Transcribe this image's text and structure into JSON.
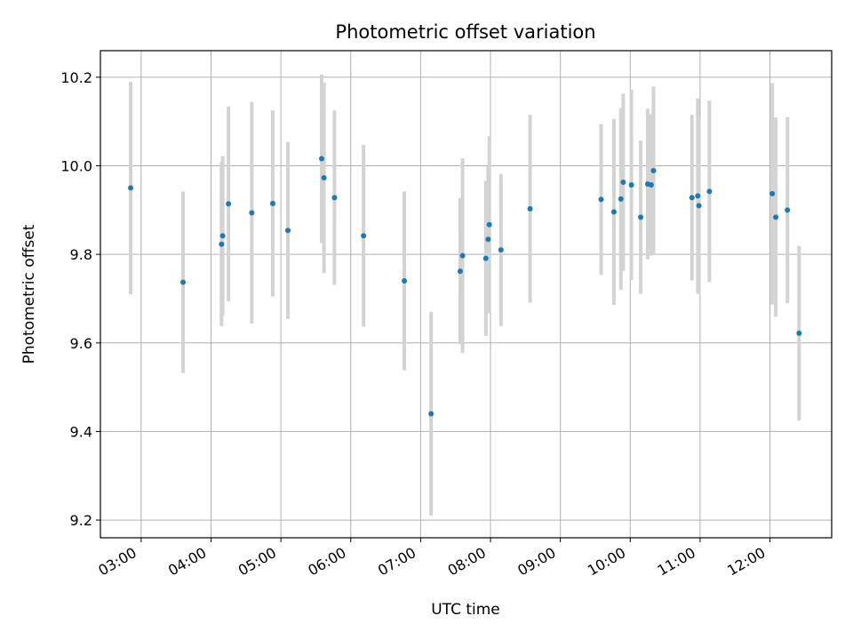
{
  "chart_data": {
    "type": "scatter",
    "title": "Photometric offset variation",
    "xlabel": "UTC time",
    "ylabel": "Photometric offset",
    "x_ticks": [
      "03:00",
      "04:00",
      "05:00",
      "06:00",
      "07:00",
      "08:00",
      "09:00",
      "10:00",
      "11:00",
      "12:00"
    ],
    "y_ticks": [
      "9.2",
      "9.4",
      "9.6",
      "9.8",
      "10.0",
      "10.2"
    ],
    "xlim": [
      "02:25",
      "12:53"
    ],
    "ylim": [
      9.16,
      10.26
    ],
    "grid": true,
    "colors": {
      "point": "#1f77b4",
      "errorbar": "#d3d3d3",
      "grid": "#b0b0b0"
    },
    "points": [
      {
        "x": "02:51",
        "y": 9.95,
        "err": 0.24
      },
      {
        "x": "03:36",
        "y": 9.737,
        "err": 0.205
      },
      {
        "x": "04:09",
        "y": 9.823,
        "err": 0.185
      },
      {
        "x": "04:10",
        "y": 9.842,
        "err": 0.18
      },
      {
        "x": "04:15",
        "y": 9.914,
        "err": 0.22
      },
      {
        "x": "04:35",
        "y": 9.894,
        "err": 0.25
      },
      {
        "x": "04:53",
        "y": 9.915,
        "err": 0.21
      },
      {
        "x": "05:06",
        "y": 9.854,
        "err": 0.2
      },
      {
        "x": "05:35",
        "y": 10.016,
        "err": 0.19
      },
      {
        "x": "05:37",
        "y": 9.973,
        "err": 0.215
      },
      {
        "x": "05:46",
        "y": 9.928,
        "err": 0.197
      },
      {
        "x": "06:11",
        "y": 9.842,
        "err": 0.205
      },
      {
        "x": "06:46",
        "y": 9.74,
        "err": 0.202
      },
      {
        "x": "07:09",
        "y": 9.44,
        "err": 0.23
      },
      {
        "x": "07:34",
        "y": 9.762,
        "err": 0.165
      },
      {
        "x": "07:36",
        "y": 9.797,
        "err": 0.22
      },
      {
        "x": "07:56",
        "y": 9.791,
        "err": 0.175
      },
      {
        "x": "07:58",
        "y": 9.834,
        "err": 0.165
      },
      {
        "x": "07:59",
        "y": 9.867,
        "err": 0.2
      },
      {
        "x": "08:09",
        "y": 9.81,
        "err": 0.172
      },
      {
        "x": "08:34",
        "y": 9.903,
        "err": 0.212
      },
      {
        "x": "09:35",
        "y": 9.924,
        "err": 0.17
      },
      {
        "x": "09:46",
        "y": 9.896,
        "err": 0.21
      },
      {
        "x": "09:52",
        "y": 9.925,
        "err": 0.205
      },
      {
        "x": "09:54",
        "y": 9.963,
        "err": 0.2
      },
      {
        "x": "10:01",
        "y": 9.957,
        "err": 0.215
      },
      {
        "x": "10:09",
        "y": 9.884,
        "err": 0.173
      },
      {
        "x": "10:15",
        "y": 9.959,
        "err": 0.17
      },
      {
        "x": "10:18",
        "y": 9.957,
        "err": 0.16
      },
      {
        "x": "10:20",
        "y": 9.989,
        "err": 0.19
      },
      {
        "x": "10:53",
        "y": 9.928,
        "err": 0.187
      },
      {
        "x": "10:58",
        "y": 9.932,
        "err": 0.22
      },
      {
        "x": "10:59",
        "y": 9.91,
        "err": 0.2
      },
      {
        "x": "11:08",
        "y": 9.942,
        "err": 0.205
      },
      {
        "x": "12:02",
        "y": 9.937,
        "err": 0.25
      },
      {
        "x": "12:05",
        "y": 9.884,
        "err": 0.225
      },
      {
        "x": "12:15",
        "y": 9.9,
        "err": 0.21
      },
      {
        "x": "12:25",
        "y": 9.622,
        "err": 0.197
      }
    ]
  }
}
